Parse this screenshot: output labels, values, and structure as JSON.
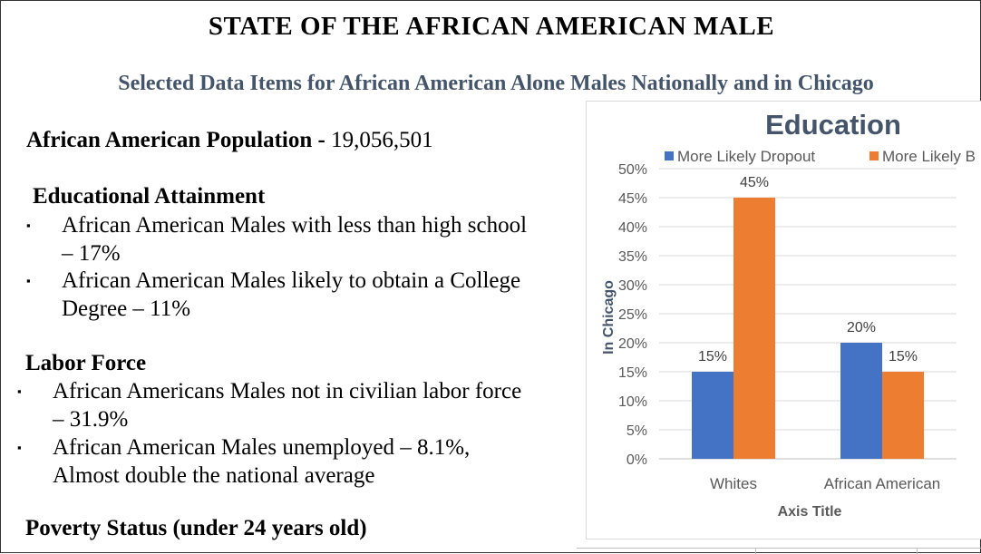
{
  "title": "STATE OF THE AFRICAN AMERICAN MALE",
  "subtitle": "Selected Data Items for African American Alone Males Nationally and in Chicago",
  "population": {
    "label": "African American Population - ",
    "value": "19,056,501"
  },
  "sections": [
    {
      "heading": "Educational Attainment",
      "items": [
        {
          "line1": "African American Males with less than high school",
          "line2": "– 17%"
        },
        {
          "line1": "African American Males likely to obtain a College",
          "line2": "Degree – 11%"
        }
      ]
    },
    {
      "heading": "Labor Force",
      "items": [
        {
          "line1": "African Americans Males not in civilian labor force",
          "line2": "– 31.9%"
        },
        {
          "line1": "African American Males unemployed – 8.1%,",
          "line2": "Almost double the national average"
        }
      ]
    },
    {
      "heading": "Poverty Status (under 24 years old)",
      "items": []
    }
  ],
  "chart_data": {
    "type": "bar",
    "title": "Education",
    "categories": [
      "Whites",
      "African American"
    ],
    "series": [
      {
        "name": "More Likely Dropout",
        "values": [
          15,
          20
        ],
        "color": "#4472c4"
      },
      {
        "name": "More Likely B",
        "values": [
          45,
          15
        ],
        "color": "#ed7d31"
      }
    ],
    "data_labels": [
      [
        "15%",
        "20%"
      ],
      [
        "45%",
        "15%"
      ]
    ],
    "xlabel": "Axis Title",
    "ylabel": "In Chicago",
    "ylim": [
      0,
      50
    ],
    "yticks": [
      "0%",
      "5%",
      "10%",
      "15%",
      "20%",
      "25%",
      "30%",
      "35%",
      "40%",
      "45%",
      "50%"
    ],
    "grid": true,
    "legend": "top"
  }
}
